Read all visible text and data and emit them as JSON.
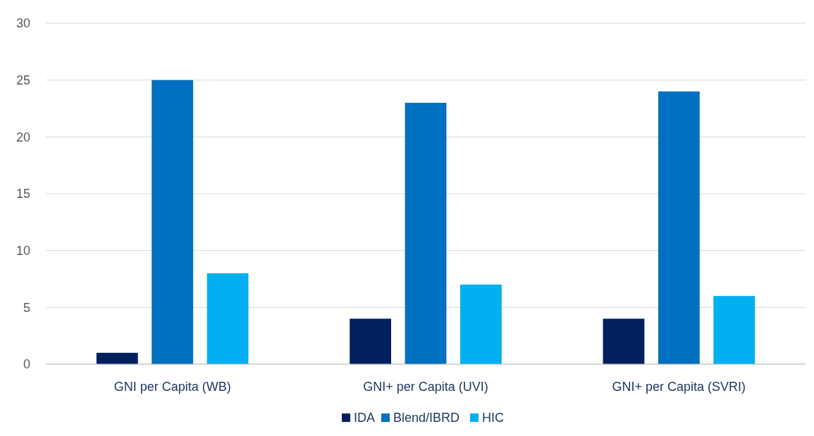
{
  "chart_data": {
    "type": "bar",
    "categories": [
      "GNI per Capita (WB)",
      "GNI+ per Capita (UVI)",
      "GNI+ per Capita (SVRI)"
    ],
    "series": [
      {
        "name": "IDA",
        "color": "#002060",
        "values": [
          1,
          4,
          4
        ]
      },
      {
        "name": "Blend/IBRD",
        "color": "#0070c0",
        "values": [
          25,
          23,
          24
        ]
      },
      {
        "name": "HIC",
        "color": "#00b0f0",
        "values": [
          8,
          7,
          6
        ]
      }
    ],
    "ylim": [
      0,
      30
    ],
    "yticks": [
      0,
      5,
      10,
      15,
      20,
      25,
      30
    ],
    "grid": "y",
    "legend": "bottom"
  }
}
